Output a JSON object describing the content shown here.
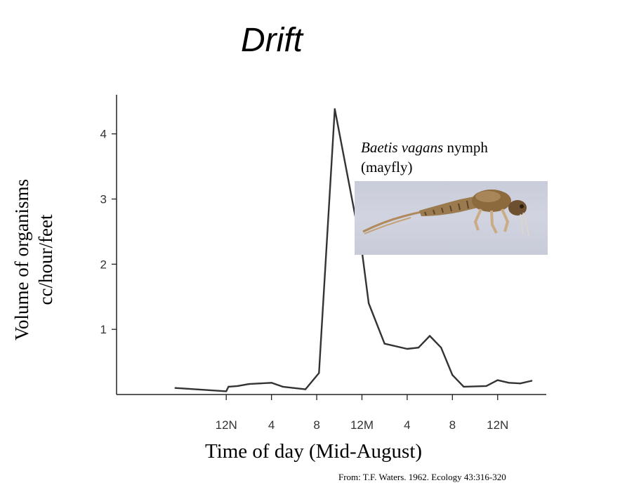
{
  "title": "Drift",
  "caption": {
    "species": "Baetis vagans",
    "stage": "nymph",
    "common_name": "(mayfly)"
  },
  "source": "From: T.F. Waters. 1962. Ecology 43:316-320",
  "chart_data": {
    "type": "line",
    "xlabel": "Time of day (Mid-August)",
    "ylabel_lines": [
      "Volume of organisms",
      "cc/hour/feet"
    ],
    "x_ticks": [
      {
        "x": 24,
        "label": "12N"
      },
      {
        "x": 28,
        "label": "4"
      },
      {
        "x": 32,
        "label": "8"
      },
      {
        "x": 36,
        "label": "12M"
      },
      {
        "x": 40,
        "label": "4"
      },
      {
        "x": 44,
        "label": "8"
      },
      {
        "x": 48,
        "label": "12N"
      }
    ],
    "y_ticks": [
      1,
      2,
      3,
      4
    ],
    "xlim": [
      14.3,
      52.3
    ],
    "ylim": [
      0,
      4.6
    ],
    "series": [
      {
        "x": [
          19.5,
          24,
          24.2,
          25,
          26,
          27,
          28,
          29,
          31,
          32.2,
          33.6,
          36,
          36.6,
          38,
          40,
          41,
          42,
          43,
          44,
          45,
          47,
          48,
          49,
          50,
          51
        ],
        "y": [
          0.1,
          0.05,
          0.12,
          0.13,
          0.16,
          0.17,
          0.18,
          0.12,
          0.08,
          0.33,
          4.38,
          2.2,
          1.4,
          0.78,
          0.7,
          0.72,
          0.9,
          0.72,
          0.3,
          0.12,
          0.13,
          0.22,
          0.18,
          0.17,
          0.21
        ]
      }
    ]
  }
}
